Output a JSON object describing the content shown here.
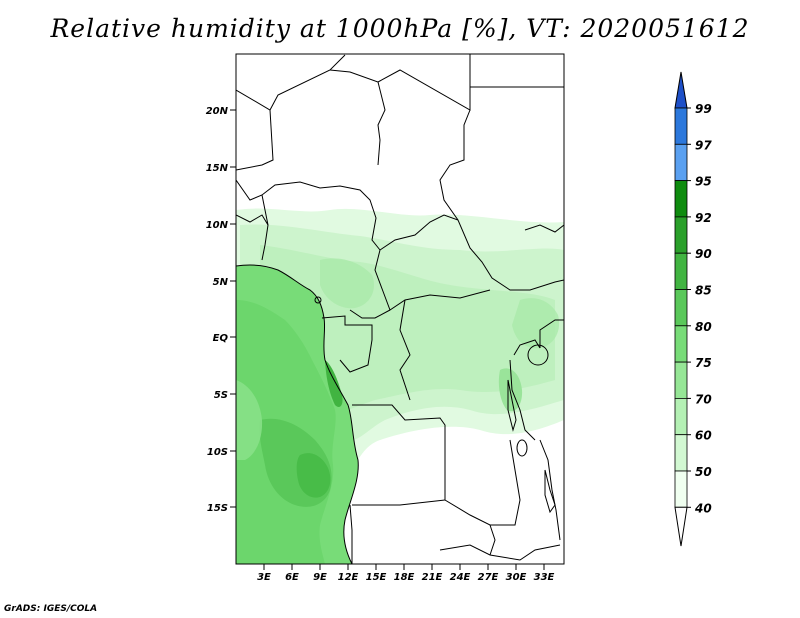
{
  "title": "Relative humidity at 1000hPa [%], VT: 2020051612",
  "credit": "GrADS: IGES/COLA",
  "map": {
    "lat_labels": [
      "20N",
      "15N",
      "10N",
      "5N",
      "EQ",
      "5S",
      "10S",
      "15S"
    ],
    "lon_labels": [
      "3E",
      "6E",
      "9E",
      "12E",
      "15E",
      "18E",
      "21E",
      "24E",
      "27E",
      "30E",
      "33E"
    ]
  },
  "colorbar": {
    "levels": [
      "99",
      "97",
      "95",
      "92",
      "90",
      "85",
      "80",
      "75",
      "70",
      "60",
      "50",
      "40"
    ],
    "colors": [
      "#1e50c8",
      "#2c78dc",
      "#5aa0f0",
      "#0f8c0f",
      "#2aa02a",
      "#41b441",
      "#5ac85a",
      "#78dc78",
      "#96e696",
      "#b4f0b4",
      "#d2f8d2",
      "#f0fff0",
      "#ffffff"
    ]
  }
}
